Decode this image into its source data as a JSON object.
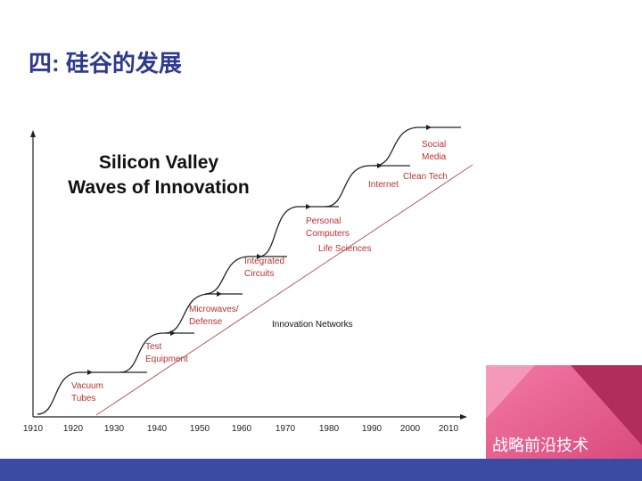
{
  "header": {
    "title": "四: 硅谷的发展"
  },
  "diagram": {
    "title_lines": [
      "Silicon Valley",
      "Waves of Innovation"
    ],
    "waves": [
      {
        "lines": [
          "Vacuum",
          "Tubes"
        ]
      },
      {
        "lines": [
          "Test",
          "Equipment"
        ]
      },
      {
        "lines": [
          "Microwaves/",
          "Defense"
        ]
      },
      {
        "lines": [
          "Integrated",
          "Circuits"
        ]
      },
      {
        "lines": [
          "Personal",
          "Computers"
        ]
      },
      {
        "lines": [
          "Internet"
        ]
      },
      {
        "lines": [
          "Social",
          "Media"
        ]
      }
    ],
    "extra_labels": [
      "Life  Sciences",
      "Clean Tech"
    ],
    "network_label": "Innovation Networks",
    "x_labels": [
      "1910",
      "1920",
      "1930",
      "1940",
      "1950",
      "1960",
      "1970",
      "1980",
      "1990",
      "2000",
      "2010"
    ]
  },
  "watermark": "战略前沿技术"
}
